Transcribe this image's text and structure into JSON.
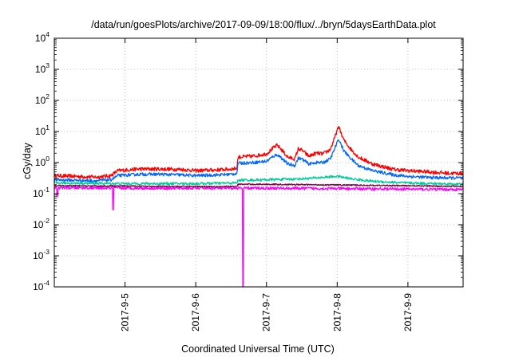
{
  "chart_data": {
    "type": "line",
    "title": "/data/run/goesPlots/archive/2017-09-09/18:00/flux/../bryn/5daysEarthData.plot",
    "xlabel": "Coordinated Universal Time (UTC)",
    "ylabel": "cGy/day",
    "yscale": "log",
    "ylim": [
      0.0001,
      10000
    ],
    "xlim": [
      4.0,
      9.78
    ],
    "grid": true,
    "x_ticks": [
      {
        "value": 5,
        "label": "2017-9-5"
      },
      {
        "value": 6,
        "label": "2017-9-6"
      },
      {
        "value": 7,
        "label": "2017-9-7"
      },
      {
        "value": 8,
        "label": "2017-9-8"
      },
      {
        "value": 9,
        "label": "2017-9-9"
      }
    ],
    "y_ticks": [
      {
        "value": 0.0001,
        "base": "10",
        "exp": "-4"
      },
      {
        "value": 0.001,
        "base": "10",
        "exp": "-3"
      },
      {
        "value": 0.01,
        "base": "10",
        "exp": "-2"
      },
      {
        "value": 0.1,
        "base": "10",
        "exp": "-1"
      },
      {
        "value": 1,
        "base": "10",
        "exp": "0"
      },
      {
        "value": 10,
        "base": "10",
        "exp": "1"
      },
      {
        "value": 100,
        "base": "10",
        "exp": "2"
      },
      {
        "value": 1000,
        "base": "10",
        "exp": "3"
      },
      {
        "value": 10000,
        "base": "10",
        "exp": "4"
      }
    ],
    "series": [
      {
        "color": "#ff0000",
        "noise": 0.06,
        "x": [
          4.0,
          4.3,
          4.6,
          4.8,
          4.9,
          5.2,
          5.5,
          5.8,
          6.0,
          6.3,
          6.5,
          6.58,
          6.6,
          6.8,
          7.0,
          7.1,
          7.15,
          7.2,
          7.3,
          7.4,
          7.45,
          7.5,
          7.6,
          7.7,
          7.8,
          7.9,
          7.95,
          8.0,
          8.03,
          8.06,
          8.1,
          8.2,
          8.3,
          8.5,
          8.8,
          9.0,
          9.3,
          9.6,
          9.78
        ],
        "y": [
          0.38,
          0.36,
          0.34,
          0.38,
          0.55,
          0.62,
          0.62,
          0.6,
          0.55,
          0.58,
          0.62,
          0.65,
          1.5,
          1.6,
          1.9,
          3.0,
          3.6,
          2.8,
          1.5,
          1.3,
          2.8,
          2.5,
          1.6,
          2.0,
          1.9,
          2.6,
          5.0,
          11.0,
          14.0,
          8.0,
          5.0,
          2.6,
          1.5,
          0.9,
          0.6,
          0.55,
          0.5,
          0.45,
          0.45
        ]
      },
      {
        "color": "#0066ff",
        "noise": 0.05,
        "x": [
          4.0,
          4.3,
          4.6,
          4.8,
          4.9,
          5.2,
          5.5,
          5.8,
          6.0,
          6.3,
          6.5,
          6.58,
          6.6,
          6.8,
          7.0,
          7.1,
          7.15,
          7.2,
          7.3,
          7.4,
          7.45,
          7.5,
          7.6,
          7.7,
          7.8,
          7.9,
          7.95,
          8.0,
          8.03,
          8.06,
          8.1,
          8.2,
          8.3,
          8.5,
          8.8,
          9.0,
          9.3,
          9.6,
          9.78
        ],
        "y": [
          0.28,
          0.27,
          0.26,
          0.28,
          0.38,
          0.42,
          0.42,
          0.4,
          0.38,
          0.4,
          0.42,
          0.45,
          0.95,
          1.0,
          1.1,
          1.6,
          1.8,
          1.5,
          0.9,
          0.8,
          1.4,
          1.3,
          0.9,
          1.0,
          1.0,
          1.3,
          2.3,
          4.5,
          5.5,
          3.5,
          2.3,
          1.3,
          0.8,
          0.55,
          0.4,
          0.36,
          0.33,
          0.32,
          0.32
        ]
      },
      {
        "color": "#00cc99",
        "noise": 0.04,
        "x": [
          4.0,
          5.0,
          6.0,
          6.58,
          6.6,
          7.0,
          7.5,
          8.0,
          8.2,
          8.5,
          9.0,
          9.78
        ],
        "y": [
          0.22,
          0.21,
          0.21,
          0.22,
          0.27,
          0.28,
          0.3,
          0.36,
          0.3,
          0.25,
          0.22,
          0.2
        ]
      },
      {
        "color": "#ff00ff",
        "noise": 0.045,
        "x": [
          4.0,
          5.0,
          6.0,
          6.5,
          7.0,
          8.0,
          9.0,
          9.78
        ],
        "y": [
          0.155,
          0.15,
          0.15,
          0.15,
          0.15,
          0.145,
          0.14,
          0.135
        ],
        "dips": [
          {
            "x": 4.04,
            "y": 0.08
          },
          {
            "x": 4.83,
            "y": 0.03
          },
          {
            "x": 6.67,
            "y": 0.0001
          }
        ]
      },
      {
        "color": "#800040",
        "noise": 0.02,
        "x": [
          4.0,
          5.0,
          6.0,
          6.58,
          6.6,
          7.0,
          8.0,
          9.0,
          9.78
        ],
        "y": [
          0.18,
          0.175,
          0.17,
          0.17,
          0.2,
          0.2,
          0.19,
          0.18,
          0.17
        ]
      }
    ]
  }
}
